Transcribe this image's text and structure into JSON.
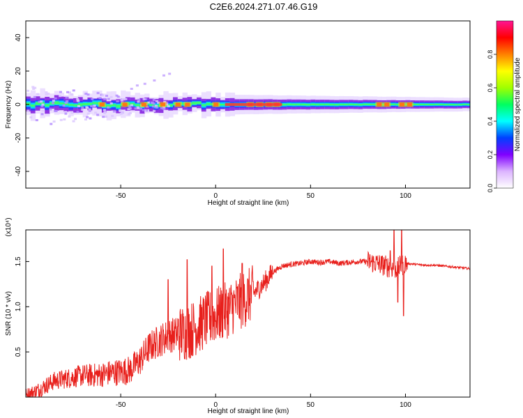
{
  "title": "C2E6.2024.271.07.46.G19",
  "chart_data": [
    {
      "type": "heatmap",
      "xlabel": "Height of straight line (km)",
      "ylabel": "Frequency (Hz)",
      "xlim": [
        -100,
        134
      ],
      "ylim": [
        -50,
        50
      ],
      "xticks": [
        -50,
        0,
        50,
        100
      ],
      "yticks": [
        -40,
        -20,
        0,
        20,
        40
      ],
      "grid": false,
      "colorbar": {
        "label": "Normalized spectral amplitude",
        "range": [
          0,
          1
        ],
        "ticks": [
          "0.0",
          "0.2",
          "0.4",
          "0.6",
          "0.8"
        ],
        "tick_values": [
          0.0,
          0.2,
          0.4,
          0.6,
          0.8
        ],
        "colors": [
          "#ffffff",
          "#dcb4ff",
          "#8000ff",
          "#0040ff",
          "#00ffff",
          "#00ff60",
          "#a0ff00",
          "#ffff00",
          "#ff8000",
          "#ff0000",
          "#ff1493"
        ]
      },
      "ridge_peaks_x": [
        -60,
        -48,
        -38,
        -28,
        -20,
        -15,
        0,
        18,
        23,
        28,
        32,
        86,
        90,
        98,
        102
      ]
    },
    {
      "type": "line",
      "xlabel": "Height of straight line (km)",
      "ylabel": "SNR (10 * v/v)",
      "y_multiplier": "(x10⁴)",
      "xlim": [
        -100,
        134
      ],
      "ylim": [
        0,
        1.85
      ],
      "xticks": [
        -50,
        0,
        50,
        100
      ],
      "yticks": [
        "0.5",
        "1.0",
        "1.5"
      ],
      "ytick_values": [
        0.5,
        1.0,
        1.5
      ],
      "grid": false,
      "series_color": "#e8201c",
      "x": [
        -100,
        -95,
        -90,
        -85,
        -80,
        -75,
        -70,
        -65,
        -60,
        -55,
        -50,
        -45,
        -40,
        -35,
        -30,
        -25,
        -20,
        -15,
        -10,
        -5,
        0,
        5,
        10,
        15,
        20,
        25,
        30,
        35,
        40,
        45,
        50,
        55,
        60,
        65,
        70,
        75,
        80,
        85,
        90,
        95,
        100,
        105,
        110,
        115,
        120,
        125,
        130,
        134
      ],
      "y": [
        0.02,
        0.06,
        0.12,
        0.18,
        0.2,
        0.22,
        0.24,
        0.24,
        0.25,
        0.27,
        0.28,
        0.3,
        0.4,
        0.55,
        0.62,
        0.68,
        0.7,
        0.72,
        0.78,
        0.85,
        0.9,
        0.95,
        1.02,
        1.08,
        1.15,
        1.25,
        1.38,
        1.45,
        1.47,
        1.48,
        1.5,
        1.49,
        1.5,
        1.48,
        1.49,
        1.5,
        1.5,
        1.48,
        1.45,
        1.42,
        1.48,
        1.47,
        1.46,
        1.46,
        1.45,
        1.44,
        1.43,
        1.42
      ],
      "spikes": [
        {
          "x": -15,
          "y": 1.52
        },
        {
          "x": -25,
          "y": 1.3
        },
        {
          "x": 4,
          "y": 1.64
        },
        {
          "x": -2,
          "y": 1.45
        },
        {
          "x": 14,
          "y": 1.48
        },
        {
          "x": 92,
          "y": 1.62
        },
        {
          "x": 94,
          "y": 1.85
        },
        {
          "x": 98,
          "y": 1.86
        },
        {
          "x": 99,
          "y": 0.9
        },
        {
          "x": 96,
          "y": 1.05
        }
      ]
    }
  ]
}
